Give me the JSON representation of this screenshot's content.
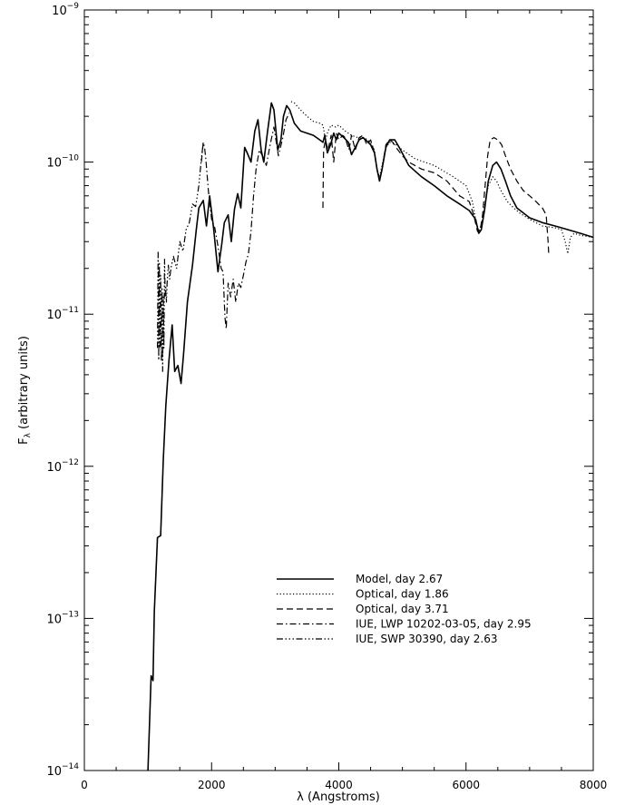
{
  "chart_data": {
    "type": "line",
    "title": "",
    "xlabel": "λ (Angstroms)",
    "ylabel": "F_λ (arbitrary units)",
    "ylabel_main": "F",
    "ylabel_sub": "λ",
    "ylabel_rest": " (arbitrary units)",
    "xlim": [
      0,
      8000
    ],
    "ylim": [
      1e-14,
      1e-09
    ],
    "yscale": "log",
    "grid": false,
    "legend_placement": "lower-right",
    "x_ticks": [
      {
        "value": 0,
        "label": "0"
      },
      {
        "value": 2000,
        "label": "2000"
      },
      {
        "value": 4000,
        "label": "4000"
      },
      {
        "value": 6000,
        "label": "6000"
      },
      {
        "value": 8000,
        "label": "8000"
      }
    ],
    "y_ticks": [
      {
        "value": 1e-14,
        "base": "10",
        "exp": "−14"
      },
      {
        "value": 1e-13,
        "base": "10",
        "exp": "−13"
      },
      {
        "value": 1e-12,
        "base": "10",
        "exp": "−12"
      },
      {
        "value": 1e-11,
        "base": "10",
        "exp": "−11"
      },
      {
        "value": 1e-10,
        "base": "10",
        "exp": "−10"
      },
      {
        "value": 1e-09,
        "base": "10",
        "exp": "−9"
      }
    ],
    "series": [
      {
        "name": "Model, day 2.67",
        "dash": "solid",
        "width": 1.6,
        "x": [
          1000,
          1050,
          1080,
          1100,
          1150,
          1200,
          1240,
          1280,
          1330,
          1380,
          1420,
          1470,
          1520,
          1560,
          1620,
          1700,
          1760,
          1800,
          1870,
          1920,
          1970,
          2030,
          2100,
          2160,
          2200,
          2260,
          2310,
          2360,
          2410,
          2460,
          2520,
          2560,
          2620,
          2680,
          2730,
          2780,
          2820,
          2880,
          2940,
          2980,
          3040,
          3090,
          3130,
          3180,
          3230,
          3300,
          3400,
          3500,
          3600,
          3700,
          3750,
          3780,
          3820,
          3870,
          3920,
          3960,
          4000,
          4080,
          4150,
          4200,
          4260,
          4320,
          4380,
          4420,
          4500,
          4560,
          4600,
          4640,
          4680,
          4740,
          4800,
          4880,
          4950,
          5100,
          5300,
          5500,
          5700,
          5900,
          6050,
          6150,
          6200,
          6240,
          6290,
          6350,
          6420,
          6480,
          6550,
          6620,
          6700,
          6800,
          7000,
          7200,
          7400,
          7600,
          7800,
          8000
        ],
        "y": [
          1e-14,
          4.2e-14,
          3.9e-14,
          1.1e-13,
          3.4e-13,
          3.5e-13,
          1.1e-12,
          2.5e-12,
          5e-12,
          8.5e-12,
          4.2e-12,
          4.6e-12,
          3.5e-12,
          5.5e-12,
          1.2e-11,
          2.1e-11,
          3.6e-11,
          5e-11,
          5.6e-11,
          3.8e-11,
          6e-11,
          3.7e-11,
          1.9e-11,
          2.9e-11,
          4e-11,
          4.5e-11,
          3e-11,
          4.9e-11,
          6.2e-11,
          5e-11,
          1.25e-10,
          1.15e-10,
          1e-10,
          1.6e-10,
          1.9e-10,
          1.2e-10,
          1e-10,
          1.6e-10,
          2.45e-10,
          2.2e-10,
          1.2e-10,
          1.4e-10,
          2e-10,
          2.35e-10,
          2.2e-10,
          1.8e-10,
          1.6e-10,
          1.55e-10,
          1.5e-10,
          1.4e-10,
          1.35e-10,
          1.5e-10,
          1.15e-10,
          1.3e-10,
          1.55e-10,
          1.4e-10,
          1.55e-10,
          1.45e-10,
          1.35e-10,
          1.12e-10,
          1.25e-10,
          1.4e-10,
          1.45e-10,
          1.4e-10,
          1.3e-10,
          1.15e-10,
          9e-11,
          7.5e-11,
          9e-11,
          1.25e-10,
          1.4e-10,
          1.4e-10,
          1.25e-10,
          9.5e-11,
          8e-11,
          7e-11,
          6e-11,
          5.3e-11,
          4.8e-11,
          4.2e-11,
          3.4e-11,
          3.6e-11,
          4.8e-11,
          7.5e-11,
          9.5e-11,
          1e-10,
          9e-11,
          7.5e-11,
          6e-11,
          5e-11,
          4.3e-11,
          4e-11,
          3.8e-11,
          3.6e-11,
          3.4e-11,
          3.2e-11
        ]
      },
      {
        "name": "Optical, day 1.86",
        "dash": "dotted",
        "width": 1.2,
        "x": [
          3250,
          3300,
          3400,
          3500,
          3600,
          3700,
          3750,
          3790,
          3830,
          3880,
          3950,
          4000,
          4100,
          4200,
          4300,
          4400,
          4500,
          4560,
          4600,
          4640,
          4680,
          4740,
          4800,
          4900,
          5000,
          5200,
          5500,
          5800,
          6000,
          6100,
          6150,
          6200,
          6250,
          6300,
          6350,
          6420,
          6480,
          6550,
          6650,
          6750,
          6850,
          7000,
          7200,
          7400,
          7500,
          7560,
          7600,
          7640,
          7700,
          7800,
          8000
        ],
        "y": [
          2.5e-10,
          2.45e-10,
          2.2e-10,
          2e-10,
          1.85e-10,
          1.8e-10,
          1.75e-10,
          1.4e-10,
          1.6e-10,
          1.75e-10,
          1.7e-10,
          1.75e-10,
          1.6e-10,
          1.5e-10,
          1.45e-10,
          1.45e-10,
          1.35e-10,
          1.2e-10,
          9e-11,
          8e-11,
          9.5e-11,
          1.25e-10,
          1.35e-10,
          1.3e-10,
          1.2e-10,
          1.05e-10,
          9.5e-11,
          8e-11,
          7e-11,
          5.5e-11,
          4.2e-11,
          3.5e-11,
          4e-11,
          5.5e-11,
          7e-11,
          8e-11,
          7.5e-11,
          6.5e-11,
          5.5e-11,
          5e-11,
          4.6e-11,
          4.2e-11,
          3.8e-11,
          3.7e-11,
          3.6e-11,
          3e-11,
          2.5e-11,
          3.2e-11,
          3.4e-11,
          3.3e-11,
          3.2e-11
        ]
      },
      {
        "name": "Optical, day 3.71",
        "dash": "dashed",
        "width": 1.2,
        "x": [
          3750,
          3760,
          3790,
          3830,
          3880,
          3920,
          3960,
          4000,
          4060,
          4100,
          4160,
          4200,
          4260,
          4320,
          4380,
          4440,
          4500,
          4560,
          4600,
          4640,
          4680,
          4740,
          4800,
          4850,
          4900,
          5000,
          5100,
          5300,
          5500,
          5700,
          5900,
          6050,
          6120,
          6180,
          6220,
          6260,
          6300,
          6340,
          6380,
          6440,
          6500,
          6560,
          6620,
          6700,
          6800,
          6900,
          7000,
          7100,
          7200,
          7260,
          7290,
          7300
        ],
        "y": [
          5e-11,
          1.2e-10,
          1.4e-10,
          1.2e-10,
          1.5e-10,
          1e-10,
          1.55e-10,
          1.4e-10,
          1.5e-10,
          1.45e-10,
          1.2e-10,
          1.5e-10,
          1.2e-10,
          1.45e-10,
          1.5e-10,
          1.3e-10,
          1.4e-10,
          1.15e-10,
          9e-11,
          7.5e-11,
          9e-11,
          1.3e-10,
          1.4e-10,
          1.35e-10,
          1.25e-10,
          1.1e-10,
          1e-10,
          9e-11,
          8.5e-11,
          7.5e-11,
          6e-11,
          5.5e-11,
          4.5e-11,
          3.5e-11,
          3.5e-11,
          4.5e-11,
          7e-11,
          1.1e-10,
          1.4e-10,
          1.45e-10,
          1.4e-10,
          1.3e-10,
          1.1e-10,
          9e-11,
          7.5e-11,
          6.5e-11,
          6e-11,
          5.5e-11,
          5e-11,
          4.5e-11,
          3e-11,
          2.5e-11
        ]
      },
      {
        "name": "IUE, LWP 10202-03-05, day 2.95",
        "dash": "dashdot",
        "width": 1.2,
        "x": [
          1840,
          1870,
          1890,
          1910,
          1950,
          2000,
          2050,
          2100,
          2150,
          2180,
          2210,
          2230,
          2260,
          2300,
          2340,
          2380,
          2420,
          2460,
          2500,
          2540,
          2580,
          2620,
          2660,
          2700,
          2750,
          2800,
          2860,
          2920,
          2980,
          3050,
          3120,
          3170,
          3220
        ],
        "y": [
          1e-10,
          1.35e-10,
          1.25e-10,
          1.05e-10,
          6.5e-11,
          4.2e-11,
          3.7e-11,
          2.8e-11,
          2e-11,
          1.9e-11,
          9.5e-12,
          8e-12,
          1.6e-11,
          1.3e-11,
          1.7e-11,
          1.2e-11,
          1.6e-11,
          1.5e-11,
          1.8e-11,
          2.2e-11,
          2.5e-11,
          3.5e-11,
          6e-11,
          9e-11,
          1.2e-10,
          1.1e-10,
          9.5e-11,
          1.3e-10,
          1.7e-10,
          1.1e-10,
          1.45e-10,
          1.9e-10,
          2.1e-10
        ]
      },
      {
        "name": "IUE, SWP 30390, day 2.63",
        "dash": "dashdotdotdot",
        "width": 1.2,
        "x": [
          1150,
          1160,
          1170,
          1180,
          1190,
          1200,
          1210,
          1220,
          1230,
          1240,
          1250,
          1260,
          1270,
          1280,
          1290,
          1300,
          1320,
          1340,
          1360,
          1380,
          1400,
          1450,
          1500,
          1550,
          1600,
          1650,
          1700,
          1750,
          1800,
          1840,
          1870
        ],
        "y": [
          6e-12,
          2.6e-11,
          5e-12,
          2.2e-11,
          6e-12,
          1.8e-11,
          5e-12,
          1.5e-11,
          4.2e-12,
          1.3e-11,
          6e-12,
          2.3e-11,
          1.3e-11,
          1.5e-11,
          1.2e-11,
          1.6e-11,
          2.1e-11,
          1.7e-11,
          2e-11,
          2.2e-11,
          2.4e-11,
          2e-11,
          3e-11,
          2.6e-11,
          3.6e-11,
          4e-11,
          5.3e-11,
          5.1e-11,
          7e-11,
          1.05e-10,
          1.35e-10
        ]
      }
    ]
  }
}
